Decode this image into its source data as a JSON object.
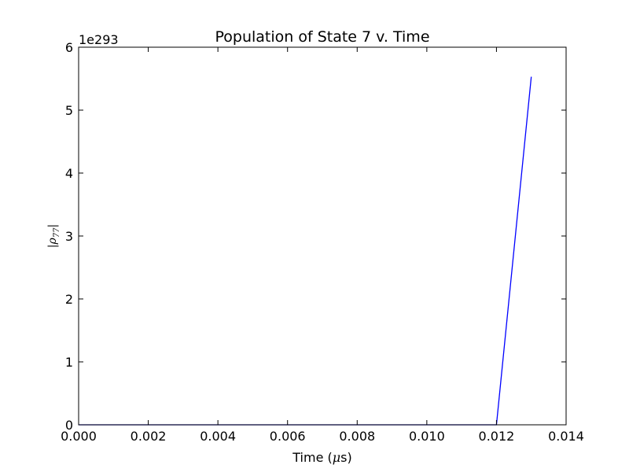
{
  "chart_data": {
    "type": "line",
    "title": "Population of State 7 v. Time",
    "xlabel": "Time ($\\mu$s)",
    "xlabel_parts": {
      "prefix": "Time (",
      "mu": "μ",
      "suffix": "s)"
    },
    "ylabel": "|ρ77|",
    "ylabel_parts": {
      "open": "|ρ",
      "sub": "77",
      "close": "|"
    },
    "y_offset_label": "1e293",
    "xlim": [
      0.0,
      0.014
    ],
    "ylim": [
      0,
      6
    ],
    "x_ticks": [
      0.0,
      0.002,
      0.004,
      0.006,
      0.008,
      0.01,
      0.012,
      0.014
    ],
    "x_tick_labels": [
      "0.000",
      "0.002",
      "0.004",
      "0.006",
      "0.008",
      "0.010",
      "0.012",
      "0.014"
    ],
    "y_ticks": [
      0,
      1,
      2,
      3,
      4,
      5,
      6
    ],
    "y_tick_labels": [
      "0",
      "1",
      "2",
      "3",
      "4",
      "5",
      "6"
    ],
    "grid": false,
    "series": [
      {
        "color": "#0000ff",
        "x": [
          0.0,
          0.012,
          0.013
        ],
        "y": [
          0,
          0,
          5.53
        ]
      }
    ]
  }
}
